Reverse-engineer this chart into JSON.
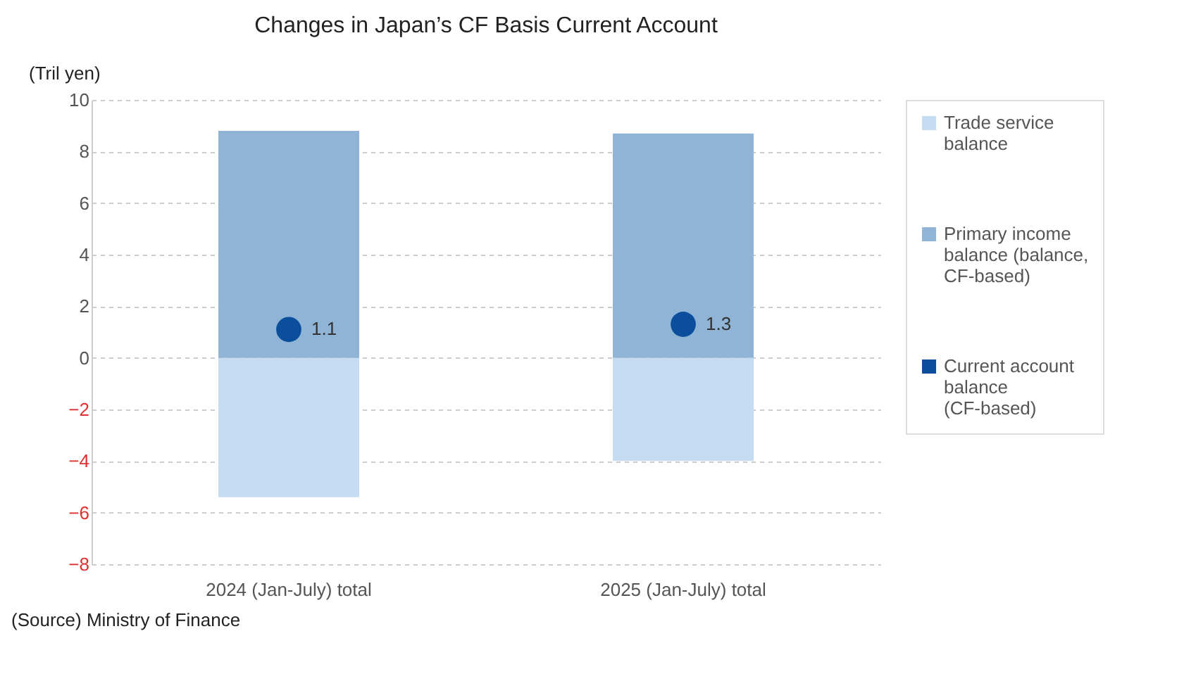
{
  "chart_data": {
    "type": "bar",
    "title": "Changes in Japan’s CF Basis Current Account",
    "ylabel": "(Tril yen)",
    "categories": [
      "2024 (Jan-July) total",
      "2025 (Jan-July) total"
    ],
    "series": [
      {
        "name": "Trade service balance",
        "color": "#c5dcf2",
        "values": [
          -5.4,
          -4.0
        ]
      },
      {
        "name": "Primary income balance (balance, CF-based)",
        "color": "#8fb4d6",
        "values": [
          8.8,
          8.7
        ]
      },
      {
        "name": "Current account balance (CF-based)",
        "type": "scatter",
        "color": "#0b4f9c",
        "values": [
          1.1,
          1.3
        ],
        "value_labels": [
          "1.1",
          "1.3"
        ]
      }
    ],
    "stacked": true,
    "ylim": [
      -8,
      10
    ],
    "yticks": [
      -8,
      -6,
      -4,
      -2,
      0,
      2,
      4,
      6,
      8,
      10
    ],
    "grid": "y",
    "legend": "right",
    "marker": "circle",
    "annotations": [
      "(Source) Ministry of Finance"
    ]
  }
}
